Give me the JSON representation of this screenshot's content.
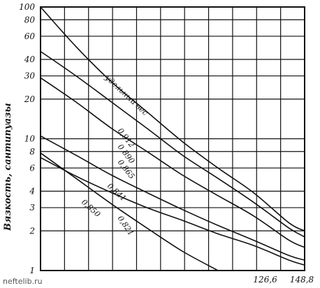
{
  "chart_data": {
    "type": "line",
    "title": "",
    "xlabel": "",
    "ylabel": "Вязкость, сантипуазы",
    "y_scale": "log",
    "ylim": [
      1,
      100
    ],
    "xlim": [
      0,
      148.8
    ],
    "grid": true,
    "y_ticks": [
      "100",
      "80",
      "60",
      "40",
      "30",
      "20",
      "10",
      "8",
      "6",
      "4",
      "3",
      "2",
      "1"
    ],
    "x_ticks": [
      "126,6",
      "148,8"
    ],
    "x_tick_values": [
      126.6,
      148.8
    ],
    "legend_title": "удельный вес",
    "series": [
      {
        "name": "0,912",
        "x": [
          0,
          20,
          40,
          60,
          80,
          100,
          120,
          140,
          148.8
        ],
        "y": [
          100,
          50,
          27,
          16,
          9.5,
          6,
          3.9,
          2.3,
          2.0
        ]
      },
      {
        "name": "0,890",
        "x": [
          0,
          20,
          40,
          60,
          80,
          100,
          120,
          140,
          148.8
        ],
        "y": [
          46,
          30,
          19,
          12,
          7.5,
          5,
          3.3,
          2.1,
          1.8
        ]
      },
      {
        "name": "0,865",
        "x": [
          0,
          20,
          40,
          60,
          80,
          100,
          120,
          140,
          148.8
        ],
        "y": [
          29,
          19,
          12,
          8,
          5.3,
          3.7,
          2.6,
          1.7,
          1.5
        ]
      },
      {
        "name": "0,841",
        "x": [
          0,
          20,
          40,
          60,
          80,
          100,
          120,
          140,
          148.8
        ],
        "y": [
          10.5,
          7.5,
          5.3,
          3.9,
          2.9,
          2.2,
          1.7,
          1.3,
          1.2
        ]
      },
      {
        "name": "0,850",
        "x": [
          0,
          20,
          40,
          60,
          80,
          100,
          120,
          140,
          148.8
        ],
        "y": [
          7.2,
          5.2,
          3.9,
          3.0,
          2.4,
          1.9,
          1.55,
          1.2,
          1.1
        ]
      },
      {
        "name": "0,821",
        "x": [
          0,
          20,
          40,
          60,
          80,
          100
        ],
        "y": [
          7.8,
          5.0,
          3.2,
          2.1,
          1.4,
          1.0
        ]
      }
    ]
  },
  "watermark": "neftelib.ru"
}
